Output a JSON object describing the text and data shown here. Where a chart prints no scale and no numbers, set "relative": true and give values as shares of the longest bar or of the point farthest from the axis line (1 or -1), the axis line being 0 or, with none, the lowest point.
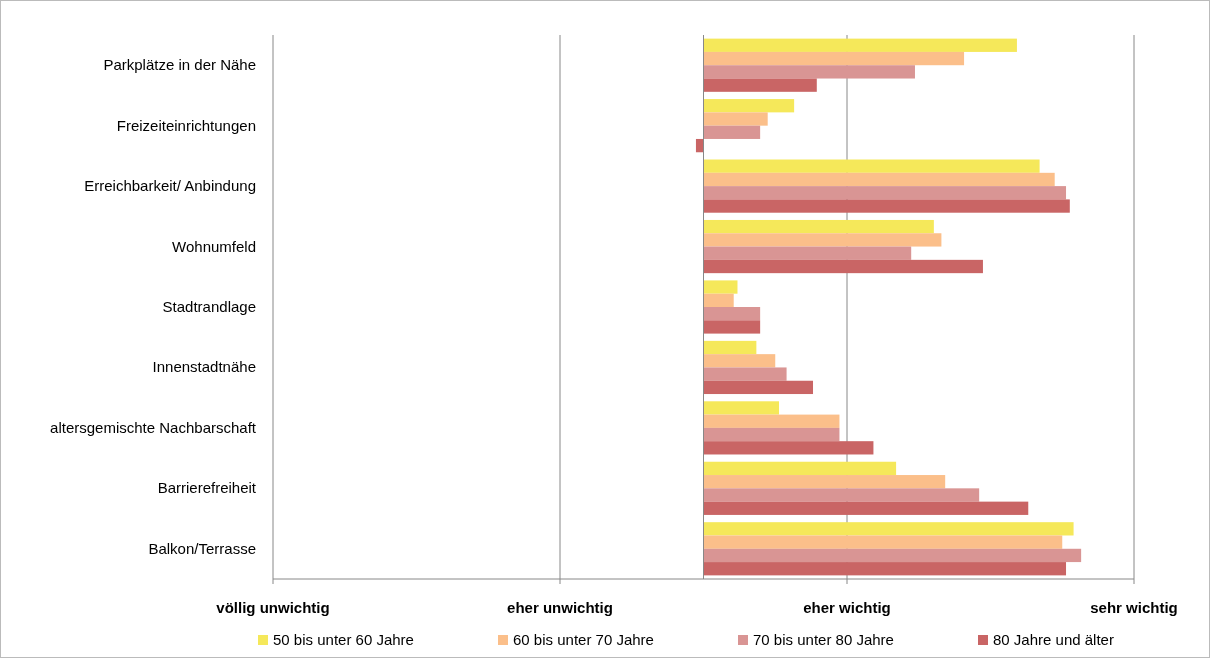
{
  "chart_data": {
    "type": "bar",
    "orientation": "horizontal",
    "relative": true,
    "categories": [
      "Parkplätze in der Nähe",
      "Freizeiteinrichtungen",
      "Erreichbarkeit/ Anbindung",
      "Wohnumfeld",
      "Stadtrandlage",
      "Innenstadtnähe",
      "altersgemischte Nachbarschaft",
      "Barrierefreiheit",
      "Balkon/Terrasse"
    ],
    "series": [
      {
        "name": "50 bis unter 60 Jahre",
        "color": "#f5e85a",
        "values": [
          0.83,
          0.24,
          0.89,
          0.61,
          0.09,
          0.14,
          0.2,
          0.51,
          0.98
        ]
      },
      {
        "name": "60 bis unter 70 Jahre",
        "color": "#fbbf8a",
        "values": [
          0.69,
          0.17,
          0.93,
          0.63,
          0.08,
          0.19,
          0.36,
          0.64,
          0.95
        ]
      },
      {
        "name": "70 bis unter 80 Jahre",
        "color": "#d99594",
        "values": [
          0.56,
          0.15,
          0.96,
          0.55,
          0.15,
          0.22,
          0.36,
          0.73,
          1
        ]
      },
      {
        "name": "80 Jahre und älter",
        "color": "#c96565",
        "values": [
          0.3,
          -0.02,
          0.97,
          0.74,
          0.15,
          0.29,
          0.45,
          0.86,
          0.96
        ]
      }
    ],
    "ref_lines": [
      {
        "axis": "x",
        "value": -1.14,
        "label": "völlig unwichtig"
      },
      {
        "axis": "x",
        "value": -0.38,
        "label": "eher unwichtig"
      },
      {
        "axis": "x",
        "value": 0.38,
        "label": "eher wichtig"
      },
      {
        "axis": "x",
        "value": 1.14,
        "label": "sehr wichtig"
      }
    ],
    "legend": "bottom"
  }
}
